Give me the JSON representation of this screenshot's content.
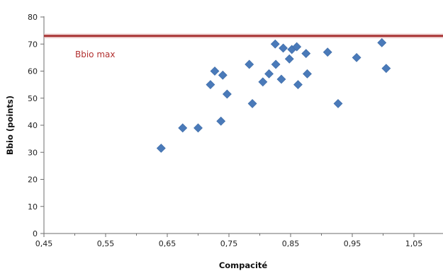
{
  "page": {
    "top_text": ""
  },
  "colors": {
    "marker": "#4a7ab9",
    "reference_line": "#a83434",
    "reference_label": "#b23030",
    "axis": "#6e6e6e"
  },
  "chart_data": {
    "type": "scatter",
    "title": "",
    "xlabel": "Compacité",
    "ylabel": "Bbio (points)",
    "xlim": [
      0.45,
      1.1
    ],
    "ylim": [
      0,
      80
    ],
    "x_ticks": [
      "0,45",
      "0,55",
      "0,65",
      "0,75",
      "0,85",
      "0,95",
      "1,05"
    ],
    "x_tick_values": [
      0.45,
      0.55,
      0.65,
      0.75,
      0.85,
      0.95,
      1.05
    ],
    "y_ticks": [
      "0",
      "10",
      "20",
      "30",
      "40",
      "50",
      "60",
      "70",
      "80"
    ],
    "y_tick_values": [
      0,
      10,
      20,
      30,
      40,
      50,
      60,
      70,
      80
    ],
    "grid": false,
    "legend": "none",
    "reference_line": {
      "label": "Bbio max",
      "y": 73
    },
    "series": [
      {
        "marker": "diamond",
        "points": [
          [
            0.64,
            31.5
          ],
          [
            0.675,
            39
          ],
          [
            0.7,
            39
          ],
          [
            0.72,
            55
          ],
          [
            0.727,
            60
          ],
          [
            0.737,
            41.5
          ],
          [
            0.74,
            58.5
          ],
          [
            0.747,
            51.5
          ],
          [
            0.783,
            62.5
          ],
          [
            0.788,
            48
          ],
          [
            0.805,
            56
          ],
          [
            0.815,
            59
          ],
          [
            0.825,
            70
          ],
          [
            0.826,
            62.5
          ],
          [
            0.835,
            57
          ],
          [
            0.838,
            68.5
          ],
          [
            0.848,
            64.5
          ],
          [
            0.852,
            68
          ],
          [
            0.86,
            69
          ],
          [
            0.862,
            55
          ],
          [
            0.875,
            66.5
          ],
          [
            0.877,
            59
          ],
          [
            0.91,
            67
          ],
          [
            0.927,
            48
          ],
          [
            0.957,
            65
          ],
          [
            0.998,
            70.5
          ],
          [
            1.005,
            61
          ]
        ]
      }
    ]
  }
}
